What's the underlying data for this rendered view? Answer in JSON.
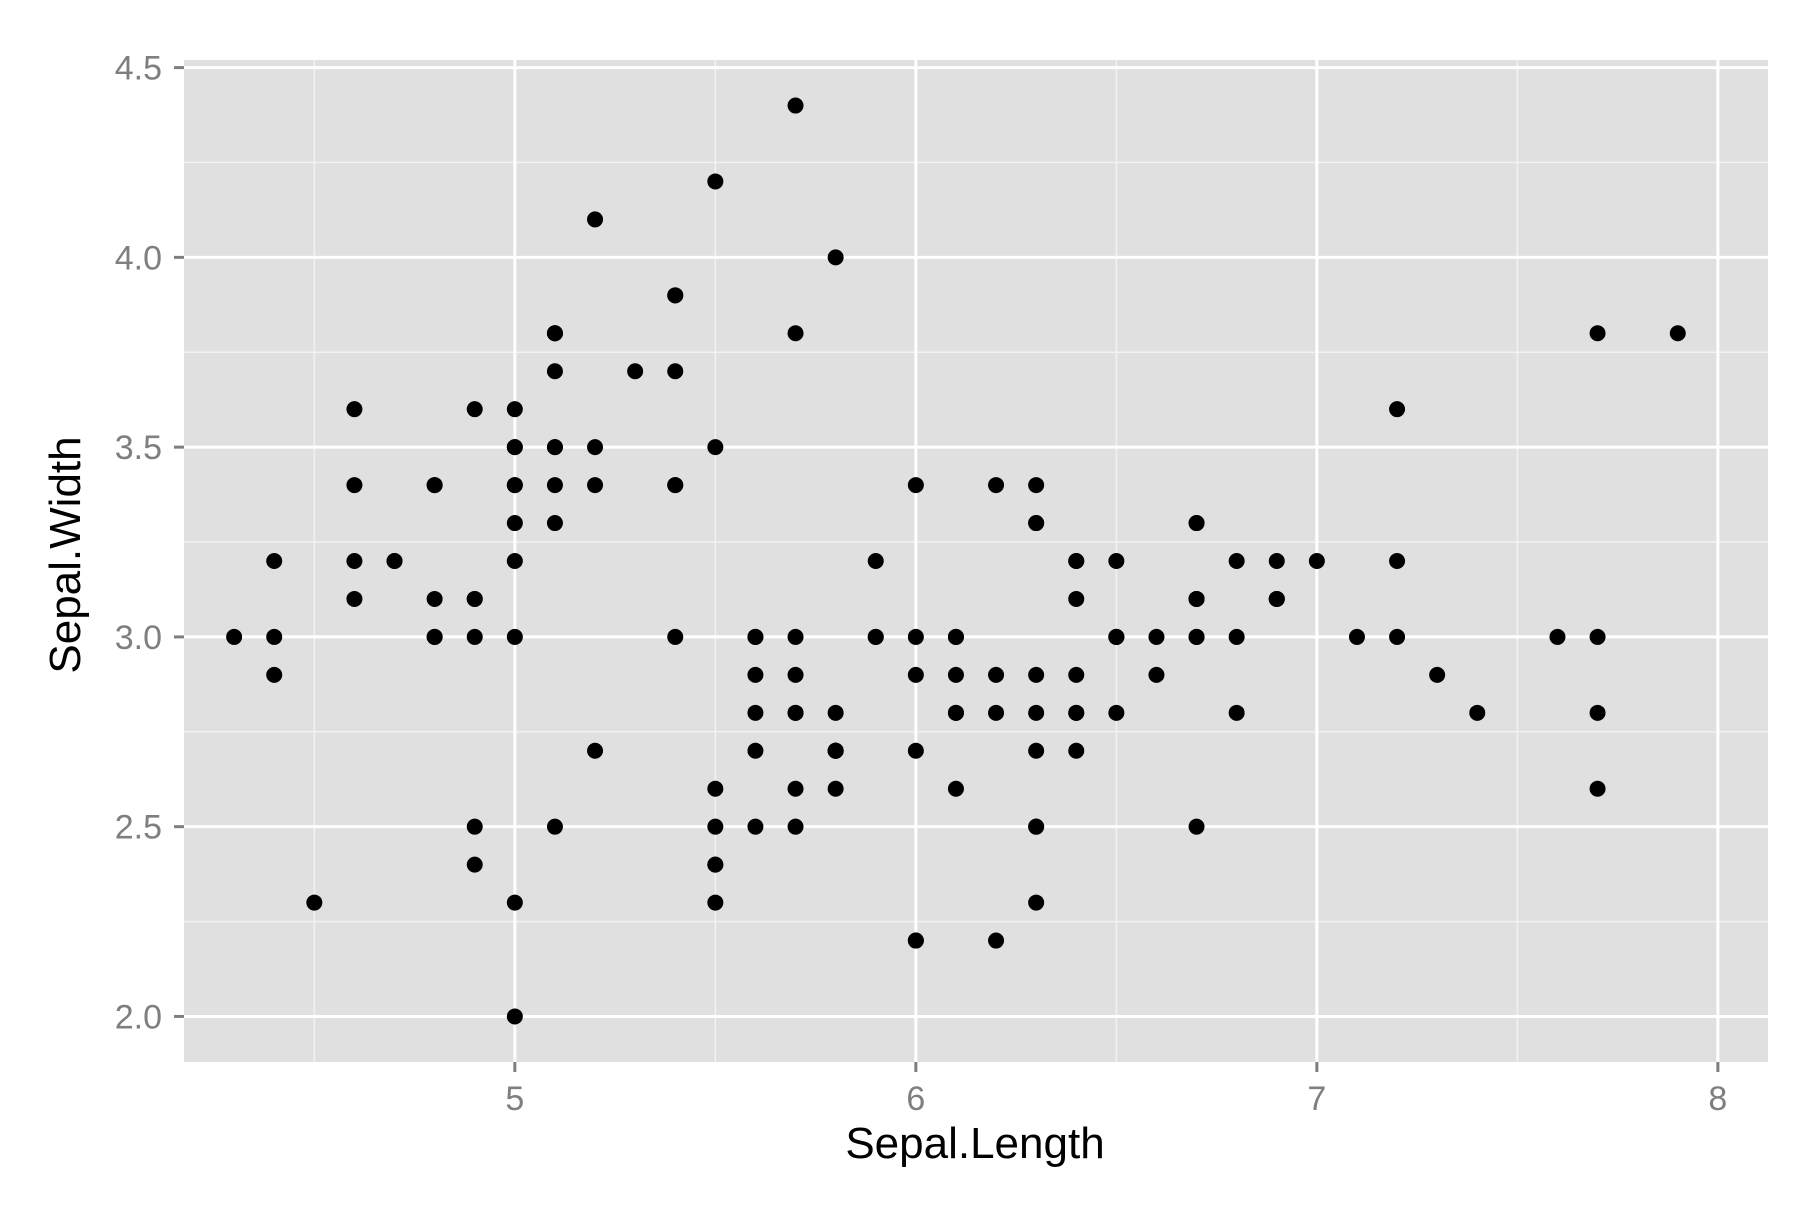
{
  "chart_data": {
    "type": "scatter",
    "xlabel": "Sepal.Length",
    "ylabel": "Sepal.Width",
    "xlim": [
      4.175,
      8.125
    ],
    "ylim": [
      1.88,
      4.52
    ],
    "x_ticks": [
      5,
      6,
      7,
      8
    ],
    "x_tick_labels": [
      "5",
      "6",
      "7",
      "8"
    ],
    "y_ticks": [
      2.0,
      2.5,
      3.0,
      3.5,
      4.0,
      4.5
    ],
    "y_tick_labels": [
      "2.0",
      "2.5",
      "3.0",
      "3.5",
      "4.0",
      "4.5"
    ],
    "grid": true,
    "colors": {
      "panel_background": "#e0e0e0",
      "grid_major": "#ffffff",
      "grid_minor": "#f2f2f2",
      "point": "#000000",
      "tick_label": "#7f7f7f",
      "axis_title": "#000000"
    },
    "points": [
      [
        5.1,
        3.5
      ],
      [
        4.9,
        3.0
      ],
      [
        4.7,
        3.2
      ],
      [
        4.6,
        3.1
      ],
      [
        5.0,
        3.6
      ],
      [
        5.4,
        3.9
      ],
      [
        4.6,
        3.4
      ],
      [
        5.0,
        3.4
      ],
      [
        4.4,
        2.9
      ],
      [
        4.9,
        3.1
      ],
      [
        5.4,
        3.7
      ],
      [
        4.8,
        3.4
      ],
      [
        4.8,
        3.0
      ],
      [
        4.3,
        3.0
      ],
      [
        5.8,
        4.0
      ],
      [
        5.7,
        4.4
      ],
      [
        5.4,
        3.9
      ],
      [
        5.1,
        3.5
      ],
      [
        5.7,
        3.8
      ],
      [
        5.1,
        3.8
      ],
      [
        5.4,
        3.4
      ],
      [
        5.1,
        3.7
      ],
      [
        4.6,
        3.6
      ],
      [
        5.1,
        3.3
      ],
      [
        4.8,
        3.4
      ],
      [
        5.0,
        3.0
      ],
      [
        5.0,
        3.4
      ],
      [
        5.2,
        3.5
      ],
      [
        5.2,
        3.4
      ],
      [
        4.7,
        3.2
      ],
      [
        4.8,
        3.1
      ],
      [
        5.4,
        3.4
      ],
      [
        5.2,
        4.1
      ],
      [
        5.5,
        4.2
      ],
      [
        4.9,
        3.1
      ],
      [
        5.0,
        3.2
      ],
      [
        5.5,
        3.5
      ],
      [
        4.9,
        3.6
      ],
      [
        4.4,
        3.0
      ],
      [
        5.1,
        3.4
      ],
      [
        5.0,
        3.5
      ],
      [
        4.5,
        2.3
      ],
      [
        4.4,
        3.2
      ],
      [
        5.0,
        3.5
      ],
      [
        5.1,
        3.8
      ],
      [
        4.8,
        3.0
      ],
      [
        5.1,
        3.8
      ],
      [
        4.6,
        3.2
      ],
      [
        5.3,
        3.7
      ],
      [
        5.0,
        3.3
      ],
      [
        7.0,
        3.2
      ],
      [
        6.4,
        3.2
      ],
      [
        6.9,
        3.1
      ],
      [
        5.5,
        2.3
      ],
      [
        6.5,
        2.8
      ],
      [
        5.7,
        2.8
      ],
      [
        6.3,
        3.3
      ],
      [
        4.9,
        2.4
      ],
      [
        6.6,
        2.9
      ],
      [
        5.2,
        2.7
      ],
      [
        5.0,
        2.0
      ],
      [
        5.9,
        3.0
      ],
      [
        6.0,
        2.2
      ],
      [
        6.1,
        2.9
      ],
      [
        5.6,
        2.9
      ],
      [
        6.7,
        3.1
      ],
      [
        5.6,
        3.0
      ],
      [
        5.8,
        2.7
      ],
      [
        6.2,
        2.2
      ],
      [
        5.6,
        2.5
      ],
      [
        5.9,
        3.2
      ],
      [
        6.1,
        2.8
      ],
      [
        6.3,
        2.5
      ],
      [
        6.1,
        2.8
      ],
      [
        6.4,
        2.9
      ],
      [
        6.6,
        3.0
      ],
      [
        6.8,
        2.8
      ],
      [
        6.7,
        3.0
      ],
      [
        6.0,
        2.9
      ],
      [
        5.7,
        2.6
      ],
      [
        5.5,
        2.4
      ],
      [
        5.5,
        2.4
      ],
      [
        5.8,
        2.7
      ],
      [
        6.0,
        2.7
      ],
      [
        5.4,
        3.0
      ],
      [
        6.0,
        3.4
      ],
      [
        6.7,
        3.1
      ],
      [
        6.3,
        2.3
      ],
      [
        5.6,
        3.0
      ],
      [
        5.5,
        2.5
      ],
      [
        5.5,
        2.6
      ],
      [
        6.1,
        3.0
      ],
      [
        5.8,
        2.6
      ],
      [
        5.0,
        2.3
      ],
      [
        5.6,
        2.7
      ],
      [
        5.7,
        3.0
      ],
      [
        5.7,
        2.9
      ],
      [
        6.2,
        2.9
      ],
      [
        5.1,
        2.5
      ],
      [
        5.7,
        2.8
      ],
      [
        6.3,
        3.3
      ],
      [
        5.8,
        2.7
      ],
      [
        7.1,
        3.0
      ],
      [
        6.3,
        2.9
      ],
      [
        6.5,
        3.0
      ],
      [
        7.6,
        3.0
      ],
      [
        4.9,
        2.5
      ],
      [
        7.3,
        2.9
      ],
      [
        6.7,
        2.5
      ],
      [
        7.2,
        3.6
      ],
      [
        6.5,
        3.2
      ],
      [
        6.4,
        2.7
      ],
      [
        6.8,
        3.0
      ],
      [
        5.7,
        2.5
      ],
      [
        5.8,
        2.8
      ],
      [
        6.4,
        3.2
      ],
      [
        6.5,
        3.0
      ],
      [
        7.7,
        3.8
      ],
      [
        7.7,
        2.6
      ],
      [
        6.0,
        2.2
      ],
      [
        6.9,
        3.2
      ],
      [
        5.6,
        2.8
      ],
      [
        7.7,
        2.8
      ],
      [
        6.3,
        2.7
      ],
      [
        6.7,
        3.3
      ],
      [
        7.2,
        3.2
      ],
      [
        6.2,
        2.8
      ],
      [
        6.1,
        3.0
      ],
      [
        6.4,
        2.8
      ],
      [
        7.2,
        3.0
      ],
      [
        7.4,
        2.8
      ],
      [
        7.9,
        3.8
      ],
      [
        6.4,
        2.8
      ],
      [
        6.3,
        2.8
      ],
      [
        6.1,
        2.6
      ],
      [
        7.7,
        3.0
      ],
      [
        6.3,
        3.4
      ],
      [
        6.4,
        3.1
      ],
      [
        6.0,
        3.0
      ],
      [
        6.9,
        3.1
      ],
      [
        6.7,
        3.1
      ],
      [
        6.9,
        3.1
      ],
      [
        5.8,
        2.7
      ],
      [
        6.8,
        3.2
      ],
      [
        6.7,
        3.3
      ],
      [
        6.7,
        3.0
      ],
      [
        6.3,
        2.5
      ],
      [
        6.5,
        3.0
      ],
      [
        6.2,
        3.4
      ],
      [
        5.9,
        3.0
      ]
    ]
  }
}
